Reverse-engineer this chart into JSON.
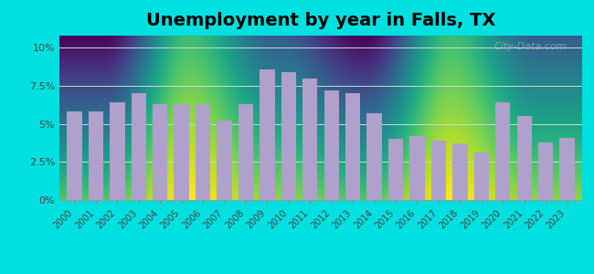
{
  "title": "Unemployment by year in Falls, TX",
  "years": [
    2000,
    2001,
    2002,
    2003,
    2004,
    2005,
    2006,
    2007,
    2008,
    2009,
    2010,
    2011,
    2012,
    2013,
    2014,
    2015,
    2016,
    2017,
    2018,
    2019,
    2020,
    2021,
    2022,
    2023
  ],
  "values": [
    5.8,
    5.8,
    6.4,
    7.0,
    6.3,
    6.3,
    6.3,
    5.2,
    6.3,
    8.6,
    8.4,
    8.0,
    7.2,
    7.0,
    5.7,
    4.0,
    4.2,
    3.9,
    3.7,
    3.1,
    6.4,
    5.5,
    3.8,
    4.1
  ],
  "bar_color": "#b0a0cc",
  "bg_color_outer": "#00e0e0",
  "bg_color_inner_top": "#cce8d8",
  "bg_color_inner_bottom": "#eaf5ee",
  "yticks": [
    0,
    2.5,
    5.0,
    7.5,
    10.0
  ],
  "yticklabels": [
    "0%",
    "2.5%",
    "5%",
    "7.5%",
    "10%"
  ],
  "ylim": [
    0,
    10.8
  ],
  "title_fontsize": 14,
  "watermark_text": "City-Data.com"
}
